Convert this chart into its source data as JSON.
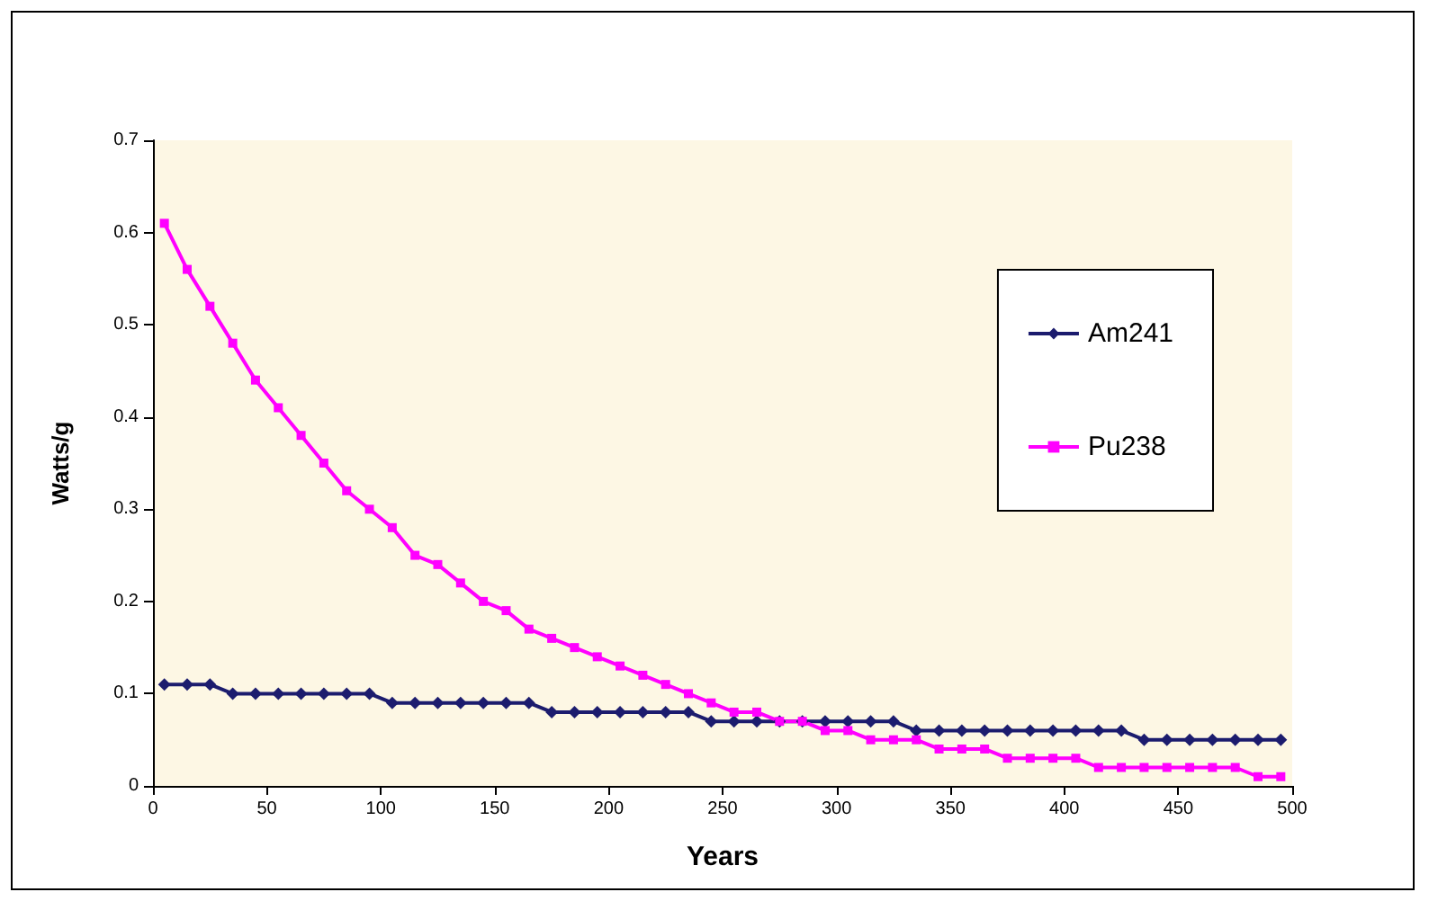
{
  "chart_data": {
    "type": "line",
    "xlabel": "Years",
    "ylabel": "Watts/g",
    "x": [
      5,
      15,
      25,
      35,
      45,
      55,
      65,
      75,
      85,
      95,
      105,
      115,
      125,
      135,
      145,
      155,
      165,
      175,
      185,
      195,
      205,
      215,
      225,
      235,
      245,
      255,
      265,
      275,
      285,
      295,
      305,
      315,
      325,
      335,
      345,
      355,
      365,
      375,
      385,
      395,
      405,
      415,
      425,
      435,
      445,
      455,
      465,
      475,
      485,
      495
    ],
    "series": [
      {
        "name": "Am241",
        "color": "#1c1c6e",
        "marker": "diamond",
        "values": [
          0.11,
          0.11,
          0.11,
          0.1,
          0.1,
          0.1,
          0.1,
          0.1,
          0.1,
          0.1,
          0.09,
          0.09,
          0.09,
          0.09,
          0.09,
          0.09,
          0.09,
          0.08,
          0.08,
          0.08,
          0.08,
          0.08,
          0.08,
          0.08,
          0.07,
          0.07,
          0.07,
          0.07,
          0.07,
          0.07,
          0.07,
          0.07,
          0.07,
          0.06,
          0.06,
          0.06,
          0.06,
          0.06,
          0.06,
          0.06,
          0.06,
          0.06,
          0.06,
          0.05,
          0.05,
          0.05,
          0.05,
          0.05,
          0.05,
          0.05
        ]
      },
      {
        "name": "Pu238",
        "color": "#ff00ff",
        "marker": "square",
        "values": [
          0.61,
          0.56,
          0.52,
          0.48,
          0.44,
          0.41,
          0.38,
          0.35,
          0.32,
          0.3,
          0.28,
          0.25,
          0.24,
          0.22,
          0.2,
          0.19,
          0.17,
          0.16,
          0.15,
          0.14,
          0.13,
          0.12,
          0.11,
          0.1,
          0.09,
          0.08,
          0.08,
          0.07,
          0.07,
          0.06,
          0.06,
          0.05,
          0.05,
          0.05,
          0.04,
          0.04,
          0.04,
          0.03,
          0.03,
          0.03,
          0.03,
          0.02,
          0.02,
          0.02,
          0.02,
          0.02,
          0.02,
          0.02,
          0.01,
          0.01
        ]
      }
    ],
    "xlim": [
      0,
      500
    ],
    "xticks": [
      0,
      50,
      100,
      150,
      200,
      250,
      300,
      350,
      400,
      450,
      500
    ],
    "ylim": [
      0,
      0.7
    ],
    "yticks": [
      0,
      0.1,
      0.2,
      0.3,
      0.4,
      0.5,
      0.6,
      0.7
    ],
    "grid": false,
    "legend": "right"
  }
}
